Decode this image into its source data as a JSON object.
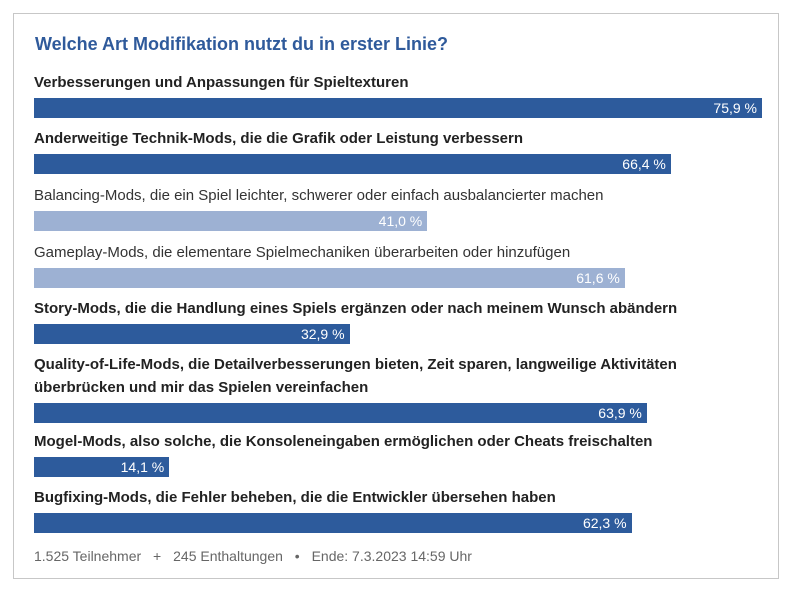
{
  "chart_data": {
    "type": "bar",
    "orientation": "horizontal",
    "title": "Welche Art Modifikation nutzt du in erster Linie?",
    "unit": "%",
    "categories": [
      "Verbesserungen und Anpassungen für Spieltexturen",
      "Anderweitige Technik-Mods, die die Grafik oder Leistung verbessern",
      "Balancing-Mods, die ein Spiel leichter, schwerer oder einfach ausbalancierter machen",
      "Gameplay-Mods, die elementare Spielmechaniken überarbeiten oder hinzufügen",
      "Story-Mods, die die Handlung eines Spiels ergänzen oder nach meinem Wunsch abändern",
      "Quality-of-Life-Mods, die Detailverbesserungen bieten, Zeit sparen, langweilige Aktivitäten überbrücken und mir das Spielen vereinfachen",
      "Mogel-Mods, also solche, die Konsoleneingaben ermöglichen oder Cheats freischalten",
      "Bugfixing-Mods, die Fehler beheben, die die Entwickler übersehen haben"
    ],
    "values": [
      75.9,
      66.4,
      41.0,
      61.6,
      32.9,
      63.9,
      14.1,
      62.3
    ],
    "value_labels": [
      "75,9 %",
      "66,4 %",
      "41,0 %",
      "61,6 %",
      "32,9 %",
      "63,9 %",
      "14,1 %",
      "62,3 %"
    ],
    "selected": [
      true,
      true,
      false,
      false,
      true,
      true,
      true,
      true
    ],
    "xlim": [
      0,
      100
    ]
  },
  "colors": {
    "title": "#2f5a9b",
    "bar_selected": "#2d5b9c",
    "bar_unselected": "#9db1d3"
  },
  "footer": {
    "participants": "1.525 Teilnehmer",
    "abstentions": "245 Enthaltungen",
    "end": "Ende: 7.3.2023 14:59 Uhr",
    "sep_plus": "+",
    "sep_dot": "•"
  }
}
